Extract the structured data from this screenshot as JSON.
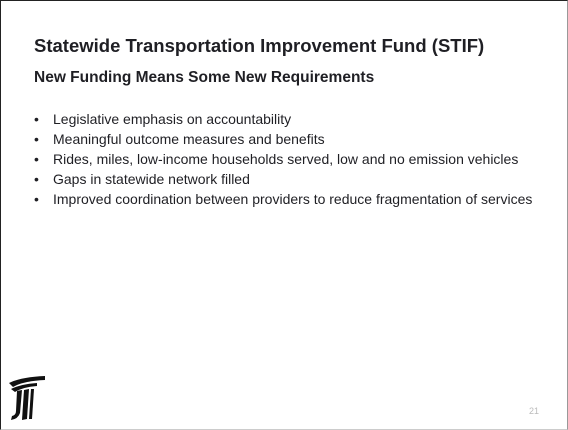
{
  "title": "Statewide Transportation Improvement Fund (STIF)",
  "subtitle": "New Funding Means Some New Requirements",
  "bullets": [
    "Legislative emphasis on accountability",
    "Meaningful outcome measures and benefits",
    "Rides, miles, low-income households served, low and no emission vehicles",
    "Gaps in statewide network filled",
    "Improved coordination between providers to reduce fragmentation of services"
  ],
  "page_number": "21"
}
